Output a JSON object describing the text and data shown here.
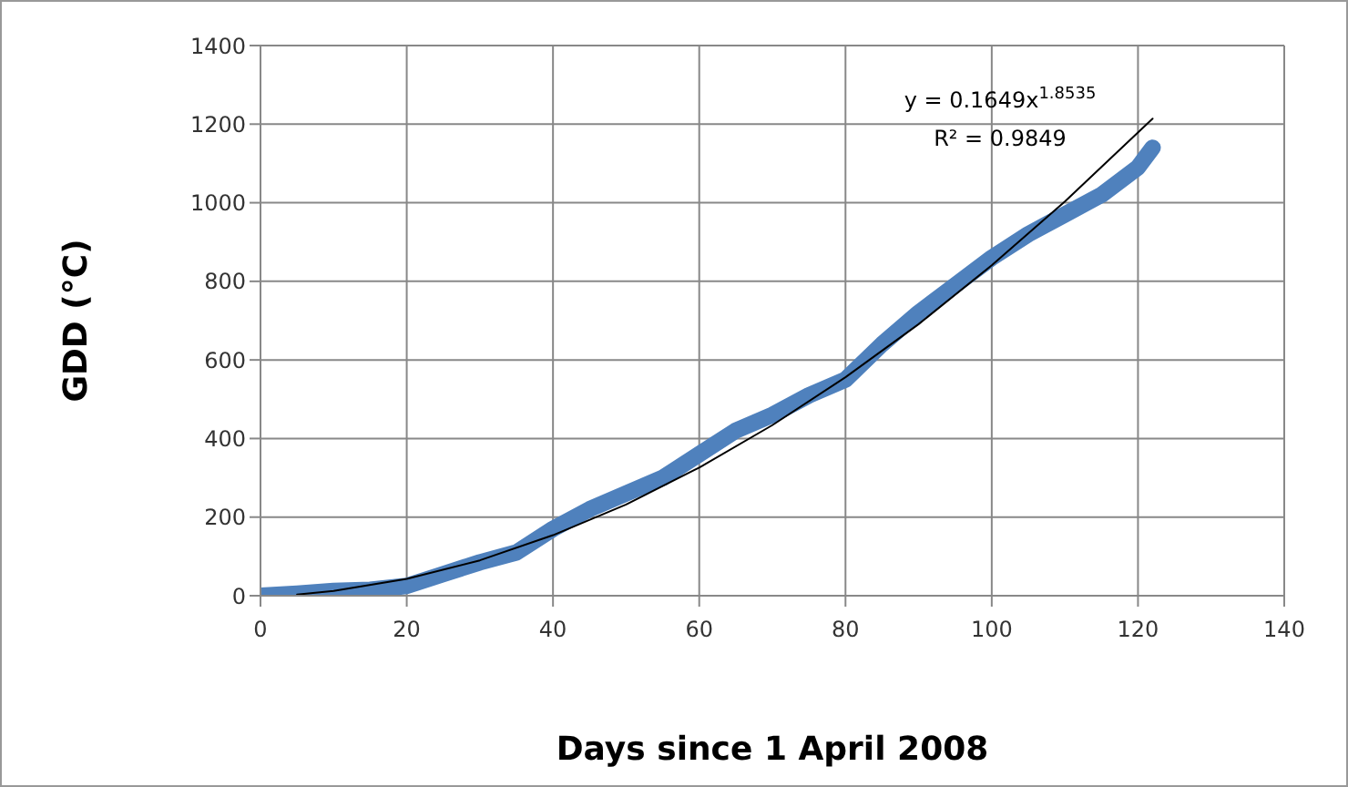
{
  "chart_data": {
    "type": "line",
    "xlabel": "Days since 1 April 2008",
    "ylabel": "GDD (°C)",
    "xlim": [
      0,
      140
    ],
    "xticks": [
      0,
      20,
      40,
      60,
      80,
      100,
      120,
      140
    ],
    "ylim": [
      0,
      1400
    ],
    "yticks": [
      0,
      200,
      400,
      600,
      800,
      1000,
      1200,
      1400
    ],
    "grid": true,
    "marker": "none",
    "series": [
      {
        "color": "#4f81bd",
        "x": [
          0,
          5,
          10,
          15,
          20,
          25,
          30,
          35,
          40,
          45,
          50,
          55,
          60,
          65,
          70,
          75,
          80,
          85,
          90,
          95,
          100,
          105,
          110,
          115,
          120,
          122
        ],
        "values": [
          0,
          5,
          12,
          15,
          25,
          55,
          85,
          110,
          170,
          220,
          260,
          300,
          360,
          420,
          460,
          510,
          550,
          640,
          720,
          790,
          860,
          920,
          970,
          1020,
          1090,
          1140
        ]
      },
      {
        "type": "line",
        "color": "#000000",
        "x": [
          5,
          10,
          20,
          30,
          40,
          50,
          60,
          70,
          80,
          90,
          100,
          110,
          122
        ],
        "values": [
          3,
          12,
          43,
          90,
          154,
          232,
          326,
          434,
          556,
          691,
          841,
          1003,
          1214
        ]
      }
    ],
    "annotations": [
      "y = 0.1649x$^{1.8535}$",
      "R² = 0.9849"
    ]
  }
}
